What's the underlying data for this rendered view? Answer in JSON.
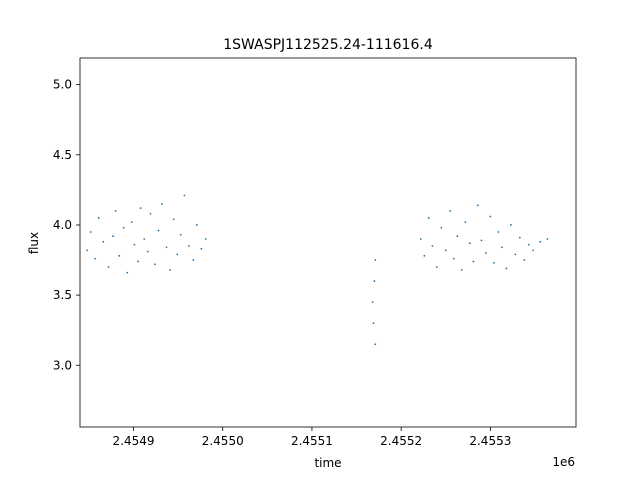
{
  "chart_data": {
    "type": "scatter",
    "title": "1SWASPJ112525.24-111616.4",
    "xlabel": "time",
    "ylabel": "flux",
    "x_offset_label": "1e6",
    "xlim": [
      2454840,
      2455396
    ],
    "ylim": [
      2.56,
      5.19
    ],
    "x_ticks": [
      {
        "value": 2454900,
        "label": "2.4549"
      },
      {
        "value": 2455000,
        "label": "2.4550"
      },
      {
        "value": 2455100,
        "label": "2.4551"
      },
      {
        "value": 2455200,
        "label": "2.4552"
      },
      {
        "value": 2455300,
        "label": "2.4553"
      }
    ],
    "y_ticks": [
      {
        "value": 3.0,
        "label": "3.0"
      },
      {
        "value": 3.5,
        "label": "3.5"
      },
      {
        "value": 4.0,
        "label": "4.0"
      },
      {
        "value": 4.5,
        "label": "4.5"
      },
      {
        "value": 5.0,
        "label": "5.0"
      }
    ],
    "grid": false,
    "marker_color": "#1f77b4",
    "series": [
      {
        "x": [
          2454848,
          2454852,
          2454857,
          2454861,
          2454866,
          2454872,
          2454877,
          2454880,
          2454884,
          2454889,
          2454893,
          2454898,
          2454901,
          2454905,
          2454908,
          2454912,
          2454916,
          2454919,
          2454924,
          2454928,
          2454932,
          2454937,
          2454941,
          2454945,
          2454949,
          2454953,
          2454957,
          2454962,
          2454967,
          2454971,
          2454976,
          2454981
        ],
        "y": [
          3.82,
          3.95,
          3.76,
          4.05,
          3.88,
          3.7,
          3.92,
          4.1,
          3.78,
          3.98,
          3.66,
          4.02,
          3.86,
          3.74,
          4.12,
          3.9,
          3.81,
          4.08,
          3.72,
          3.96,
          4.15,
          3.84,
          3.68,
          4.04,
          3.79,
          3.93,
          4.21,
          3.85,
          3.75,
          4.0,
          3.83,
          3.9
        ]
      },
      {
        "x": [
          2455168,
          2455169,
          2455170,
          2455171,
          2455171
        ],
        "y": [
          3.45,
          3.3,
          3.6,
          3.15,
          3.75
        ]
      },
      {
        "x": [
          2455222,
          2455226,
          2455231,
          2455235,
          2455240,
          2455245,
          2455250,
          2455255,
          2455259,
          2455263,
          2455268,
          2455272,
          2455277,
          2455281,
          2455286,
          2455290,
          2455295,
          2455300,
          2455304,
          2455309,
          2455313,
          2455318,
          2455323,
          2455328,
          2455333,
          2455338,
          2455343,
          2455348,
          2455356,
          2455364
        ],
        "y": [
          3.9,
          3.78,
          4.05,
          3.85,
          3.7,
          3.98,
          3.82,
          4.1,
          3.76,
          3.92,
          3.68,
          4.02,
          3.87,
          3.74,
          4.14,
          3.89,
          3.8,
          4.06,
          3.73,
          3.95,
          3.84,
          3.69,
          4.0,
          3.79,
          3.91,
          3.75,
          3.86,
          3.82,
          3.88,
          3.9
        ]
      }
    ]
  }
}
